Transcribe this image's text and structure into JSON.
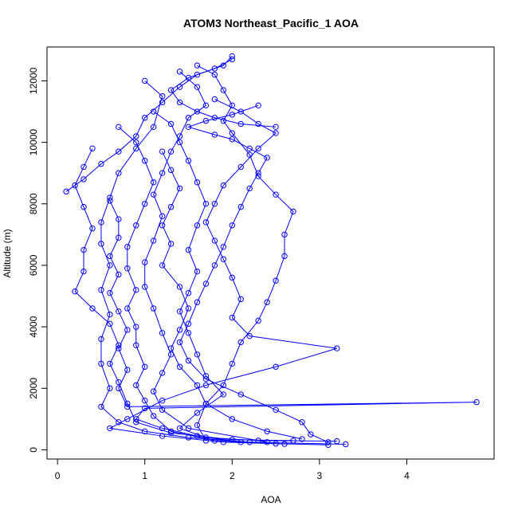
{
  "chart_data": {
    "type": "line",
    "title": "ATOM3 Northeast_Pacific_1 AOA",
    "xlabel": "AOA",
    "ylabel": "Altitude (m)",
    "xlim": [
      -0.12,
      5.0
    ],
    "ylim": [
      -300,
      13100
    ],
    "x_ticks": [
      0,
      1,
      2,
      3,
      4
    ],
    "y_ticks": [
      0,
      2000,
      4000,
      6000,
      8000,
      10000,
      12000
    ],
    "grid": false,
    "legend": "none",
    "marker": "open-circle",
    "color": "#0000ff",
    "series": [
      {
        "points": [
          [
            1.0,
            12000
          ],
          [
            1.2,
            11500
          ],
          [
            1.1,
            10500
          ],
          [
            0.9,
            9800
          ],
          [
            0.7,
            9000
          ],
          [
            0.6,
            8200
          ],
          [
            0.5,
            7400
          ],
          [
            0.5,
            6700
          ],
          [
            0.6,
            6000
          ],
          [
            0.5,
            5200
          ],
          [
            0.6,
            4400
          ],
          [
            0.5,
            3600
          ],
          [
            0.5,
            2800
          ],
          [
            0.6,
            2000
          ],
          [
            0.5,
            1400
          ],
          [
            0.7,
            900
          ],
          [
            1.0,
            600
          ],
          [
            1.5,
            400
          ],
          [
            2.2,
            250
          ],
          [
            3.3,
            180
          ]
        ]
      },
      {
        "points": [
          [
            1.4,
            12300
          ],
          [
            1.6,
            11800
          ],
          [
            1.7,
            11200
          ],
          [
            1.5,
            10800
          ],
          [
            1.4,
            10200
          ],
          [
            1.3,
            9700
          ],
          [
            1.2,
            9000
          ],
          [
            1.1,
            8300
          ],
          [
            1.2,
            7600
          ],
          [
            1.1,
            6800
          ],
          [
            1.0,
            6100
          ],
          [
            1.0,
            5300
          ],
          [
            1.1,
            4600
          ],
          [
            1.2,
            3800
          ],
          [
            1.3,
            3100
          ],
          [
            1.2,
            2500
          ],
          [
            1.1,
            1900
          ],
          [
            1.2,
            1300
          ],
          [
            1.5,
            700
          ],
          [
            2.4,
            250
          ]
        ]
      },
      {
        "points": [
          [
            1.6,
            12500
          ],
          [
            1.8,
            12200
          ],
          [
            1.9,
            11700
          ],
          [
            2.0,
            11200
          ],
          [
            1.9,
            10700
          ],
          [
            2.0,
            10300
          ],
          [
            2.2,
            9600
          ],
          [
            2.3,
            8900
          ],
          [
            2.5,
            8300
          ],
          [
            2.7,
            7750
          ],
          [
            2.6,
            7000
          ],
          [
            2.6,
            6300
          ],
          [
            2.5,
            5500
          ],
          [
            2.4,
            4800
          ],
          [
            2.3,
            4200
          ],
          [
            2.1,
            3500
          ],
          [
            2.0,
            2800
          ],
          [
            1.9,
            2100
          ],
          [
            1.7,
            1500
          ],
          [
            1.6,
            800
          ],
          [
            1.7,
            300
          ]
        ]
      },
      {
        "points": [
          [
            0.4,
            9800
          ],
          [
            0.3,
            9200
          ],
          [
            0.2,
            8600
          ],
          [
            0.3,
            7900
          ],
          [
            0.4,
            7200
          ],
          [
            0.3,
            6500
          ],
          [
            0.3,
            5800
          ],
          [
            0.2,
            5150
          ],
          [
            0.4,
            4600
          ],
          [
            0.6,
            4100
          ],
          [
            0.7,
            3400
          ],
          [
            0.6,
            2800
          ],
          [
            0.7,
            2200
          ],
          [
            0.8,
            1500
          ],
          [
            0.9,
            900
          ],
          [
            1.3,
            550
          ],
          [
            2.0,
            330
          ],
          [
            2.7,
            300
          ]
        ]
      },
      {
        "points": [
          [
            0.7,
            10500
          ],
          [
            0.9,
            10000
          ],
          [
            1.0,
            9400
          ],
          [
            1.1,
            8700
          ],
          [
            1.0,
            8000
          ],
          [
            0.9,
            7300
          ],
          [
            0.8,
            6600
          ],
          [
            0.8,
            5900
          ],
          [
            0.9,
            5200
          ],
          [
            0.8,
            4600
          ],
          [
            0.9,
            4000
          ],
          [
            0.9,
            3400
          ],
          [
            1.0,
            2700
          ],
          [
            0.9,
            2100
          ],
          [
            1.0,
            1600
          ],
          [
            1.1,
            1100
          ],
          [
            1.3,
            600
          ],
          [
            1.8,
            300
          ],
          [
            2.5,
            200
          ],
          [
            3.1,
            160
          ]
        ]
      },
      {
        "points": [
          [
            1.1,
            11000
          ],
          [
            1.3,
            10600
          ],
          [
            1.4,
            10000
          ],
          [
            1.5,
            9400
          ],
          [
            1.6,
            8700
          ],
          [
            1.7,
            8000
          ],
          [
            1.6,
            7300
          ],
          [
            1.5,
            6500
          ],
          [
            1.6,
            5800
          ],
          [
            1.5,
            5100
          ],
          [
            1.4,
            4500
          ],
          [
            1.5,
            3800
          ],
          [
            1.6,
            3100
          ],
          [
            1.7,
            2400
          ],
          [
            1.9,
            1800
          ],
          [
            1.6,
            1200
          ],
          [
            1.4,
            700
          ],
          [
            1.7,
            400
          ],
          [
            2.3,
            300
          ],
          [
            3.2,
            280
          ]
        ]
      },
      {
        "points": [
          [
            1.8,
            11400
          ],
          [
            2.1,
            11000
          ],
          [
            2.3,
            10600
          ],
          [
            2.5,
            10300
          ],
          [
            2.3,
            9800
          ],
          [
            2.1,
            9200
          ],
          [
            1.9,
            8600
          ],
          [
            1.8,
            8000
          ],
          [
            1.7,
            7400
          ],
          [
            1.8,
            6800
          ],
          [
            1.9,
            6200
          ],
          [
            2.0,
            5600
          ],
          [
            2.1,
            4900
          ],
          [
            2.0,
            4300
          ],
          [
            2.2,
            3700
          ],
          [
            3.2,
            3300
          ],
          [
            2.5,
            2700
          ],
          [
            1.7,
            2100
          ],
          [
            1.2,
            1600
          ],
          [
            0.8,
            1000
          ],
          [
            0.6,
            700
          ],
          [
            1.2,
            450
          ],
          [
            1.9,
            250
          ],
          [
            2.6,
            190
          ]
        ]
      },
      {
        "points": [
          [
            0.1,
            8400
          ],
          [
            0.3,
            8800
          ],
          [
            0.5,
            9300
          ],
          [
            0.7,
            9700
          ],
          [
            0.9,
            10200
          ],
          [
            1.0,
            10800
          ],
          [
            1.2,
            11300
          ],
          [
            1.4,
            11800
          ],
          [
            1.6,
            12200
          ],
          [
            1.9,
            12500
          ],
          [
            2.0,
            12800
          ]
        ]
      },
      {
        "points": [
          [
            2.0,
            12700
          ],
          [
            1.8,
            12400
          ],
          [
            1.5,
            12100
          ],
          [
            1.3,
            11700
          ],
          [
            1.4,
            11300
          ],
          [
            1.6,
            11000
          ],
          [
            1.8,
            10800
          ],
          [
            2.1,
            10600
          ],
          [
            2.5,
            10500
          ]
        ]
      },
      {
        "points": [
          [
            1.2,
            9700
          ],
          [
            1.3,
            9100
          ],
          [
            1.4,
            8500
          ],
          [
            1.3,
            7900
          ],
          [
            1.2,
            7300
          ],
          [
            1.3,
            6700
          ],
          [
            1.2,
            6000
          ],
          [
            1.4,
            5300
          ],
          [
            1.5,
            4600
          ],
          [
            1.4,
            3900
          ],
          [
            1.3,
            3300
          ],
          [
            1.4,
            2700
          ],
          [
            1.6,
            2100
          ],
          [
            1.7,
            1500
          ],
          [
            2.0,
            1000
          ],
          [
            2.4,
            600
          ],
          [
            2.8,
            350
          ]
        ]
      },
      {
        "points": [
          [
            0.6,
            8100
          ],
          [
            0.7,
            7500
          ],
          [
            0.7,
            6900
          ],
          [
            0.6,
            6300
          ],
          [
            0.7,
            5700
          ],
          [
            0.6,
            5100
          ],
          [
            0.7,
            4500
          ],
          [
            0.8,
            3900
          ],
          [
            0.7,
            3300
          ],
          [
            0.8,
            2600
          ],
          [
            0.7,
            2000
          ],
          [
            0.8,
            1400
          ],
          [
            4.8,
            1550
          ],
          [
            1.0,
            1350
          ],
          [
            0.9,
            1000
          ],
          [
            1.2,
            700
          ],
          [
            1.6,
            450
          ],
          [
            2.1,
            250
          ]
        ]
      },
      {
        "points": [
          [
            2.3,
            11200
          ],
          [
            2.0,
            10900
          ],
          [
            1.7,
            10700
          ],
          [
            1.5,
            10500
          ],
          [
            1.8,
            10250
          ],
          [
            2.0,
            10100
          ],
          [
            2.2,
            9800
          ],
          [
            2.4,
            9500
          ],
          [
            2.3,
            9000
          ],
          [
            2.2,
            8500
          ],
          [
            2.1,
            7900
          ],
          [
            2.0,
            7300
          ],
          [
            1.9,
            6600
          ],
          [
            1.8,
            6000
          ],
          [
            1.7,
            5400
          ],
          [
            1.6,
            4800
          ],
          [
            1.5,
            4100
          ],
          [
            1.4,
            3500
          ],
          [
            1.5,
            2900
          ],
          [
            1.7,
            2300
          ],
          [
            2.1,
            1800
          ],
          [
            2.5,
            1300
          ],
          [
            2.8,
            900
          ],
          [
            2.9,
            500
          ],
          [
            3.1,
            250
          ]
        ]
      }
    ]
  }
}
